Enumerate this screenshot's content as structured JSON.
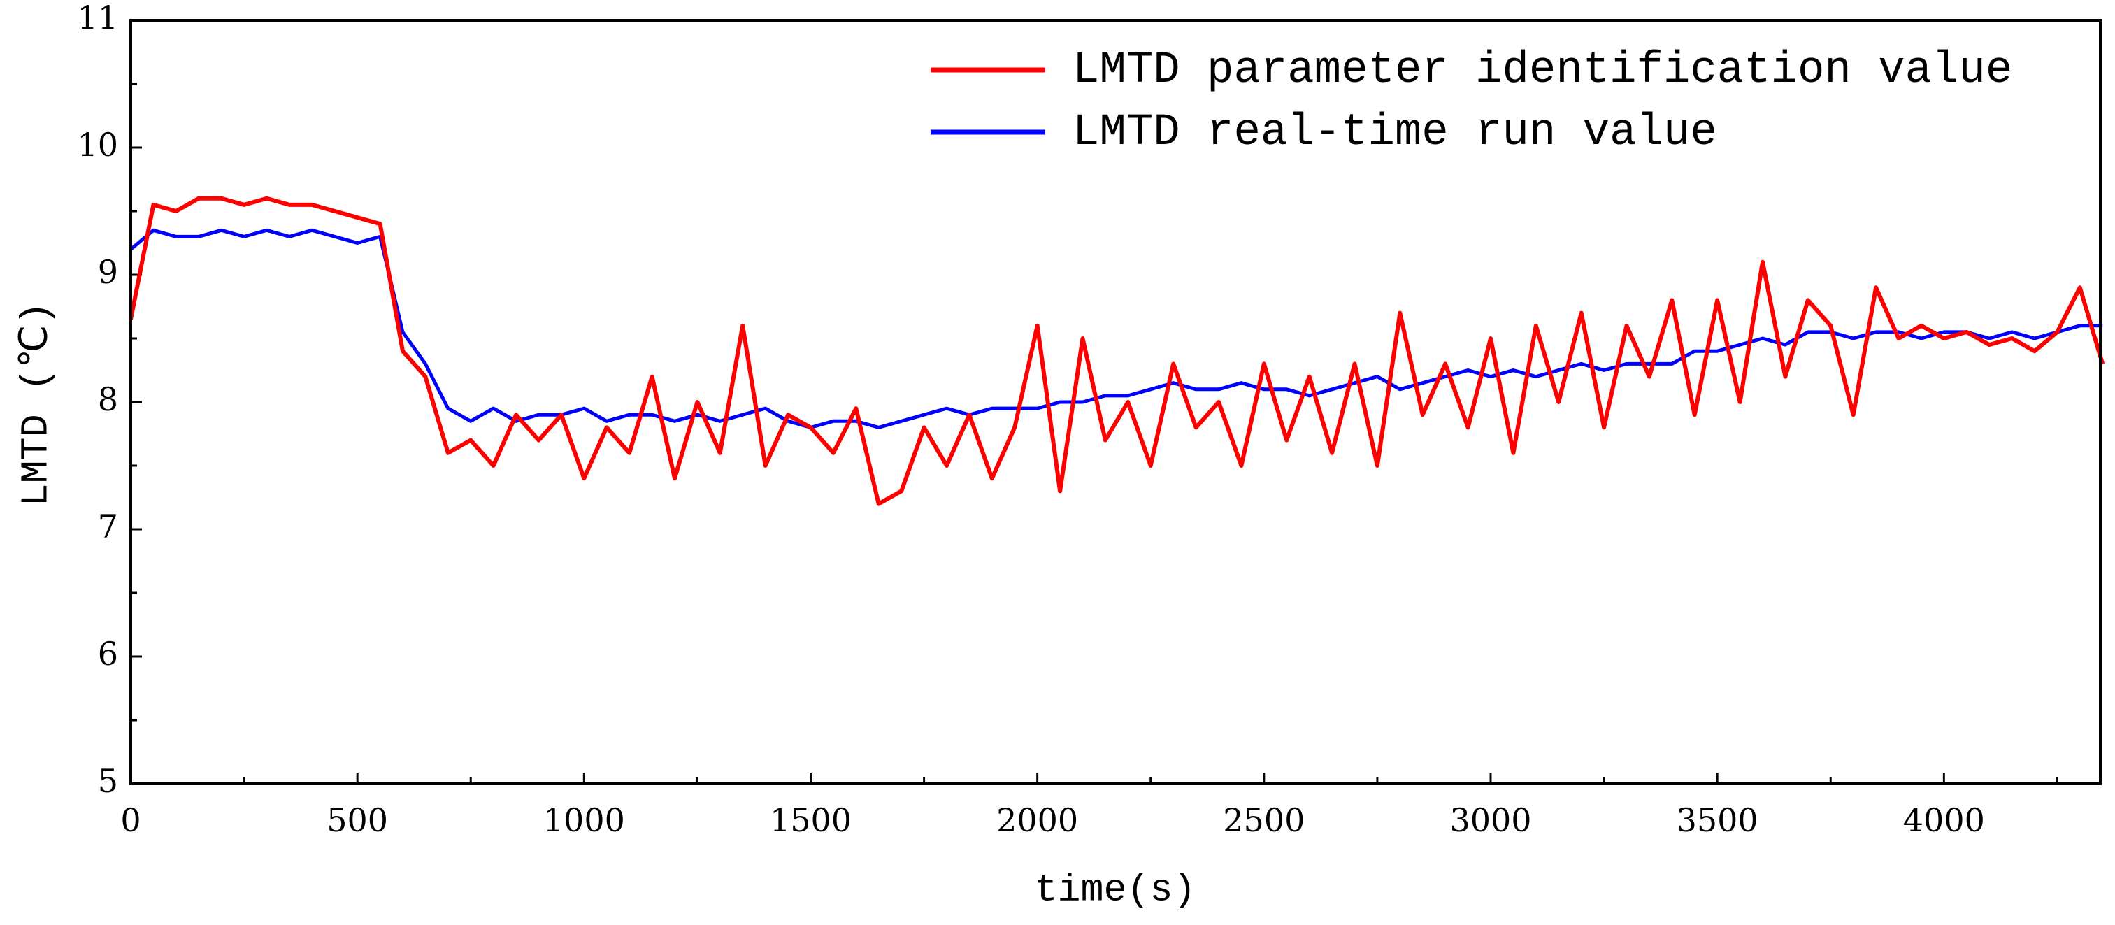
{
  "chart_data": {
    "type": "line",
    "xlabel": "time(s)",
    "ylabel": "LMTD (℃)",
    "x": [
      0,
      50,
      100,
      150,
      200,
      250,
      300,
      350,
      400,
      450,
      500,
      550,
      600,
      650,
      700,
      750,
      800,
      850,
      900,
      950,
      1000,
      1050,
      1100,
      1150,
      1200,
      1250,
      1300,
      1350,
      1400,
      1450,
      1500,
      1550,
      1600,
      1650,
      1700,
      1750,
      1800,
      1850,
      1900,
      1950,
      2000,
      2050,
      2100,
      2150,
      2200,
      2250,
      2300,
      2350,
      2400,
      2450,
      2500,
      2550,
      2600,
      2650,
      2700,
      2750,
      2800,
      2850,
      2900,
      2950,
      3000,
      3050,
      3100,
      3150,
      3200,
      3250,
      3300,
      3350,
      3400,
      3450,
      3500,
      3550,
      3600,
      3650,
      3700,
      3750,
      3800,
      3850,
      3900,
      3950,
      4000,
      4050,
      4100,
      4150,
      4200,
      4250,
      4300,
      4350
    ],
    "series": [
      {
        "name": "LMTD parameter identification value",
        "color": "#ff0000",
        "values": [
          8.65,
          9.55,
          9.5,
          9.6,
          9.6,
          9.55,
          9.6,
          9.55,
          9.55,
          9.5,
          9.45,
          9.4,
          8.4,
          8.2,
          7.6,
          7.7,
          7.5,
          7.9,
          7.7,
          7.9,
          7.4,
          7.8,
          7.6,
          8.2,
          7.4,
          8.0,
          7.6,
          8.6,
          7.5,
          7.9,
          7.8,
          7.6,
          7.95,
          7.2,
          7.3,
          7.8,
          7.5,
          7.9,
          7.4,
          7.8,
          8.6,
          7.3,
          8.5,
          7.7,
          8.0,
          7.5,
          8.3,
          7.8,
          8.0,
          7.5,
          8.3,
          7.7,
          8.2,
          7.6,
          8.3,
          7.5,
          8.7,
          7.9,
          8.3,
          7.8,
          8.5,
          7.6,
          8.6,
          8.0,
          8.7,
          7.8,
          8.6,
          8.2,
          8.8,
          7.9,
          8.8,
          8.0,
          9.1,
          8.2,
          8.8,
          8.6,
          7.9,
          8.9,
          8.5,
          8.6,
          8.5,
          8.55,
          8.45,
          8.5,
          8.4,
          8.55,
          8.9,
          8.3
        ]
      },
      {
        "name": "LMTD real-time run value",
        "color": "#0000ff",
        "values": [
          9.2,
          9.35,
          9.3,
          9.3,
          9.35,
          9.3,
          9.35,
          9.3,
          9.35,
          9.3,
          9.25,
          9.3,
          8.55,
          8.3,
          7.95,
          7.85,
          7.95,
          7.85,
          7.9,
          7.9,
          7.95,
          7.85,
          7.9,
          7.9,
          7.85,
          7.9,
          7.85,
          7.9,
          7.95,
          7.85,
          7.8,
          7.85,
          7.85,
          7.8,
          7.85,
          7.9,
          7.95,
          7.9,
          7.95,
          7.95,
          7.95,
          8.0,
          8.0,
          8.05,
          8.05,
          8.1,
          8.15,
          8.1,
          8.1,
          8.15,
          8.1,
          8.1,
          8.05,
          8.1,
          8.15,
          8.2,
          8.1,
          8.15,
          8.2,
          8.25,
          8.2,
          8.25,
          8.2,
          8.25,
          8.3,
          8.25,
          8.3,
          8.3,
          8.3,
          8.4,
          8.4,
          8.45,
          8.5,
          8.45,
          8.55,
          8.55,
          8.5,
          8.55,
          8.55,
          8.5,
          8.55,
          8.55,
          8.5,
          8.55,
          8.5,
          8.55,
          8.6,
          8.6
        ]
      }
    ],
    "xlim": [
      0,
      4345
    ],
    "ylim": [
      5,
      11
    ],
    "xticks": [
      0,
      500,
      1000,
      1500,
      2000,
      2500,
      3000,
      3500,
      4000
    ],
    "yticks": [
      5,
      6,
      7,
      8,
      9,
      10,
      11
    ],
    "legend": "upper right",
    "grid": false
  }
}
